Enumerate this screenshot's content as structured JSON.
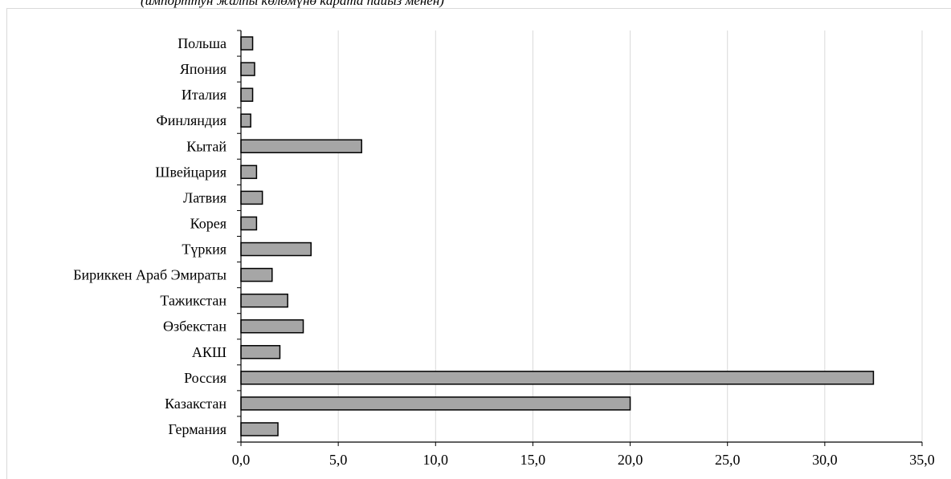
{
  "subtitle": "(импорттун жалпы көлөмүнө карата пайыз менен)",
  "chart_data": {
    "type": "bar",
    "orientation": "horizontal",
    "categories": [
      "Германия",
      "Казакстан",
      "Россия",
      "АКШ",
      "Өзбекстан",
      "Тажикстан",
      "Бириккен Араб Эмираты",
      "Түркия",
      "Корея",
      "Латвия",
      "Швейцария",
      "Кытай",
      "Финляндия",
      "Италия",
      "Япония",
      "Польша"
    ],
    "values": [
      1.9,
      20.0,
      32.5,
      2.0,
      3.2,
      2.4,
      1.6,
      3.6,
      0.8,
      1.1,
      0.8,
      6.2,
      0.5,
      0.6,
      0.7,
      0.6
    ],
    "xlim": [
      0,
      35
    ],
    "xticks": [
      "0,0",
      "5,0",
      "10,0",
      "15,0",
      "20,0",
      "25,0",
      "30,0",
      "35,0"
    ],
    "xtick_values": [
      0,
      5,
      10,
      15,
      20,
      25,
      30,
      35
    ],
    "grid": "vertical",
    "bar_color": "#a6a6a6",
    "bar_edge_color": "#000000",
    "grid_color": "#d9d9d9"
  }
}
